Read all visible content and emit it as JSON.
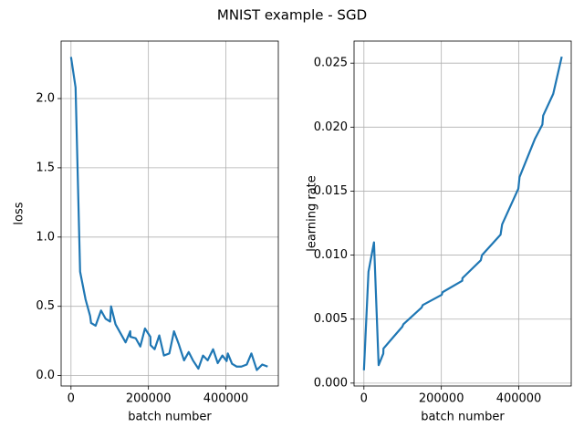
{
  "title": "MNIST example - SGD",
  "chart_data": [
    {
      "type": "line",
      "xlabel": "batch number",
      "ylabel": "loss",
      "x": [
        0,
        11800,
        23500,
        37600,
        49400,
        51800,
        63500,
        77600,
        89400,
        101000,
        103500,
        115000,
        127000,
        141000,
        153000,
        153500,
        167000,
        179000,
        191000,
        205000,
        205500,
        216000,
        228000,
        240000,
        254000,
        266000,
        278000,
        292000,
        304000,
        315000,
        329000,
        341000,
        353000,
        367000,
        379000,
        391000,
        402000,
        405000,
        416000,
        428000,
        440000,
        454000,
        466000,
        480000,
        494000,
        508000
      ],
      "series": [
        {
          "color": "#1f77b4",
          "values": [
            2.3,
            2.08,
            0.75,
            0.55,
            0.43,
            0.38,
            0.36,
            0.47,
            0.41,
            0.39,
            0.5,
            0.37,
            0.31,
            0.24,
            0.32,
            0.28,
            0.27,
            0.21,
            0.34,
            0.28,
            0.22,
            0.19,
            0.29,
            0.145,
            0.16,
            0.32,
            0.23,
            0.11,
            0.17,
            0.11,
            0.05,
            0.145,
            0.11,
            0.19,
            0.09,
            0.145,
            0.105,
            0.16,
            0.085,
            0.065,
            0.065,
            0.08,
            0.16,
            0.04,
            0.08,
            0.065
          ]
        }
      ],
      "xlim": [
        -25500,
        535500
      ],
      "xticks": [
        0,
        200000,
        400000
      ],
      "ylim": [
        -0.075,
        2.415
      ],
      "yticks": [
        {
          "value": 0,
          "label": "0.0"
        },
        0.5,
        {
          "value": 1,
          "label": "1.0"
        },
        1.5,
        {
          "value": 2,
          "label": "2.0"
        }
      ],
      "grid": true
    },
    {
      "type": "line",
      "xlabel": "batch number",
      "ylabel": "learning rate",
      "x": [
        0,
        11800,
        26000,
        38000,
        50000,
        50500,
        76000,
        99000,
        102000,
        149000,
        152000,
        201000,
        203000,
        254000,
        254500,
        302000,
        305000,
        353000,
        357000,
        399000,
        402000,
        442000,
        461000,
        463000,
        489000,
        511000
      ],
      "series": [
        {
          "color": "#1f77b4",
          "values": [
            0.001,
            0.0087,
            0.011,
            0.0014,
            0.0023,
            0.0027,
            0.0036,
            0.0044,
            0.0046,
            0.0059,
            0.0061,
            0.0069,
            0.0071,
            0.008,
            0.0082,
            0.0096,
            0.01,
            0.0116,
            0.0124,
            0.0152,
            0.0161,
            0.0191,
            0.0202,
            0.0209,
            0.0226,
            0.0255
          ]
        }
      ],
      "xlim": [
        -25500,
        535500
      ],
      "xticks": [
        0,
        200000,
        400000
      ],
      "ylim": [
        -0.000225,
        0.026725
      ],
      "yticks": [
        {
          "value": 0,
          "label": "0.000"
        },
        0.005,
        {
          "value": 0.01,
          "label": "0.010"
        },
        0.015,
        {
          "value": 0.02,
          "label": "0.020"
        },
        0.025
      ],
      "grid": true
    }
  ]
}
